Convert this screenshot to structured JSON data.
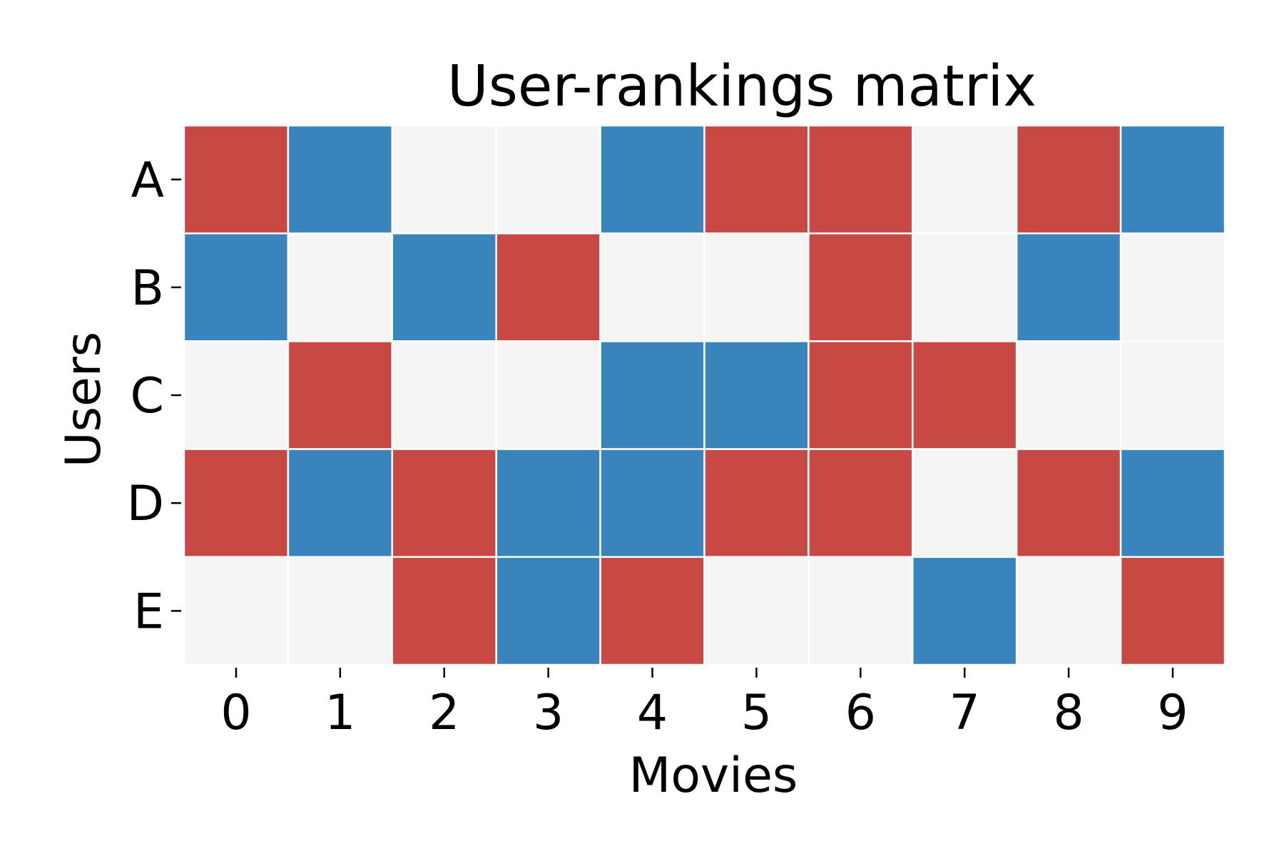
{
  "chart_data": {
    "type": "heatmap",
    "title": "User-rankings matrix",
    "xlabel": "Movies",
    "ylabel": "Users",
    "x_categories": [
      "0",
      "1",
      "2",
      "3",
      "4",
      "5",
      "6",
      "7",
      "8",
      "9"
    ],
    "y_categories": [
      "A",
      "B",
      "C",
      "D",
      "E"
    ],
    "values": [
      [
        1,
        -1,
        0,
        0,
        -1,
        1,
        1,
        0,
        1,
        -1
      ],
      [
        -1,
        0,
        -1,
        1,
        0,
        0,
        1,
        0,
        -1,
        0
      ],
      [
        0,
        1,
        0,
        0,
        -1,
        -1,
        1,
        1,
        0,
        0
      ],
      [
        1,
        -1,
        1,
        -1,
        -1,
        1,
        1,
        0,
        1,
        -1
      ],
      [
        0,
        0,
        1,
        -1,
        1,
        0,
        0,
        -1,
        0,
        1
      ]
    ],
    "color_scale": {
      "-1": "#3984bc",
      "0": "#f5f5f5",
      "1": "#c84843"
    },
    "colorbar": false,
    "grid": false
  }
}
